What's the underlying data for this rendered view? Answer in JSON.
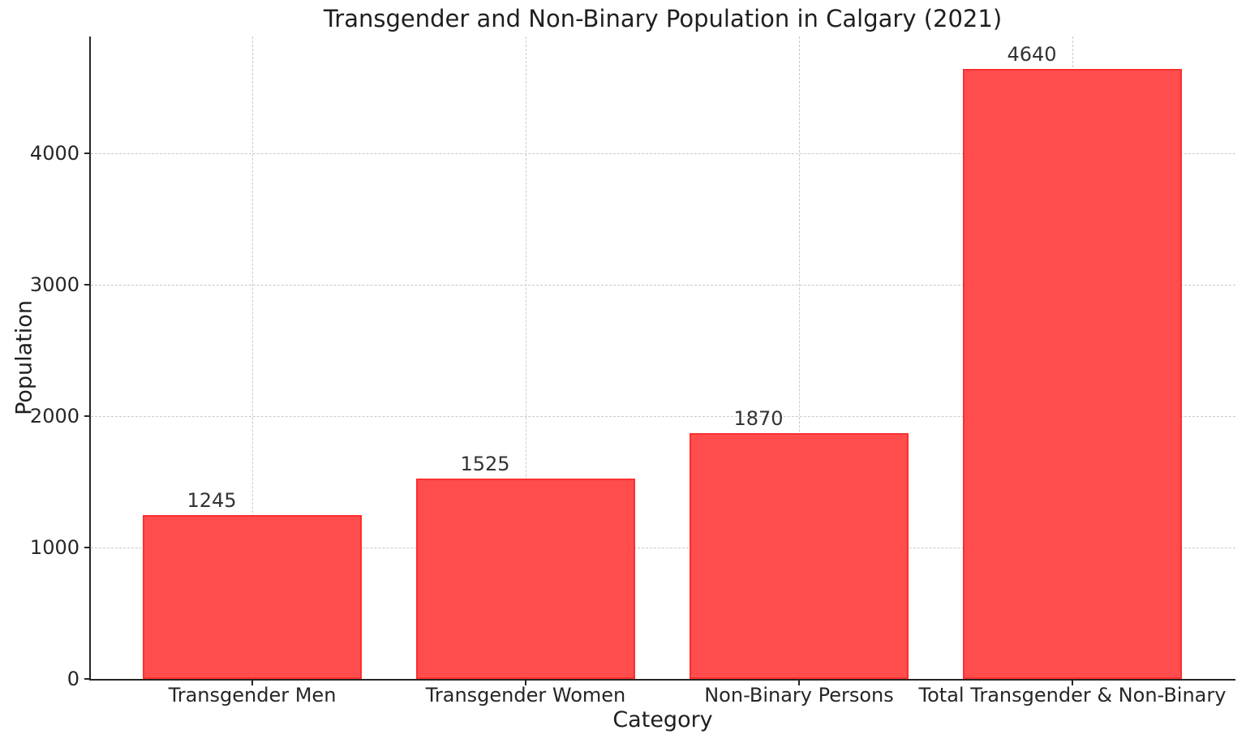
{
  "chart_data": {
    "type": "bar",
    "title": "Transgender and Non-Binary Population in Calgary (2021)",
    "xlabel": "Category",
    "ylabel": "Population",
    "categories": [
      "Transgender Men",
      "Transgender Women",
      "Non-Binary Persons",
      "Total Transgender & Non-Binary"
    ],
    "values": [
      1245,
      1525,
      1870,
      4640
    ],
    "bar_value_labels": [
      "1245",
      "1525",
      "1870",
      "4640"
    ],
    "yticks": [
      0,
      1000,
      2000,
      3000,
      4000
    ],
    "ylim": [
      0,
      4890
    ],
    "grid": "both-dashed",
    "legend": null,
    "colors": {
      "bar_fill": "#FF4D4D",
      "bar_edge": "#FB2F2F",
      "grid": "#C9C9C9",
      "axis": "#262626",
      "text": "#1F1F1F"
    }
  }
}
